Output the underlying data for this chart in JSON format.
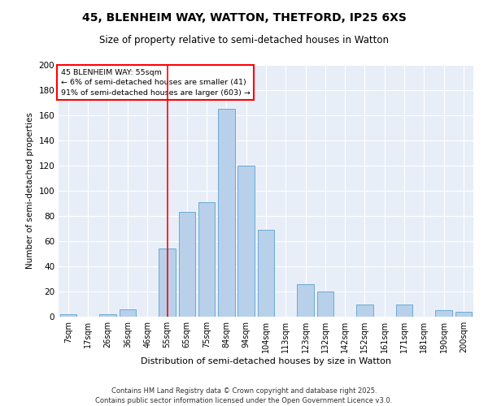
{
  "title_line1": "45, BLENHEIM WAY, WATTON, THETFORD, IP25 6XS",
  "title_line2": "Size of property relative to semi-detached houses in Watton",
  "xlabel": "Distribution of semi-detached houses by size in Watton",
  "ylabel": "Number of semi-detached properties",
  "categories": [
    "7sqm",
    "17sqm",
    "26sqm",
    "36sqm",
    "46sqm",
    "55sqm",
    "65sqm",
    "75sqm",
    "84sqm",
    "94sqm",
    "104sqm",
    "113sqm",
    "123sqm",
    "132sqm",
    "142sqm",
    "152sqm",
    "161sqm",
    "171sqm",
    "181sqm",
    "190sqm",
    "200sqm"
  ],
  "values": [
    2,
    0,
    2,
    6,
    0,
    54,
    83,
    91,
    165,
    120,
    69,
    0,
    26,
    20,
    0,
    10,
    0,
    10,
    0,
    5,
    4
  ],
  "bar_color": "#b8d0ea",
  "bar_edge_color": "#6aaad4",
  "annotation_text_line1": "45 BLENHEIM WAY: 55sqm",
  "annotation_text_line2": "← 6% of semi-detached houses are smaller (41)",
  "annotation_text_line3": "91% of semi-detached houses are larger (603) →",
  "vline_x_index": 5,
  "ylim": [
    0,
    200
  ],
  "yticks": [
    0,
    20,
    40,
    60,
    80,
    100,
    120,
    140,
    160,
    180,
    200
  ],
  "bg_color": "#e8eef8",
  "grid_color": "#ffffff",
  "footer_line1": "Contains HM Land Registry data © Crown copyright and database right 2025.",
  "footer_line2": "Contains public sector information licensed under the Open Government Licence v3.0."
}
